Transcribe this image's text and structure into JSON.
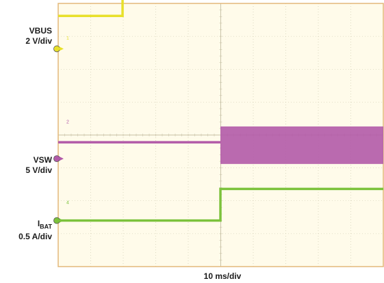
{
  "chart_data": {
    "type": "line",
    "title": "",
    "xlabel": "10 ms/div",
    "x_divisions": 10,
    "y_divisions": 8,
    "grid": true,
    "colors": {
      "background": "#fffbea",
      "grid": "#c9c3a8",
      "frame": "#e3b87a",
      "vbus": "#e8e02a",
      "vsw": "#b25aa8",
      "ibat": "#7cc23c"
    },
    "channels": [
      {
        "id": "vbus",
        "name": "VBUS",
        "scale": "2 V/div",
        "marker_div": 6.62,
        "trace_divs": [
          [
            0,
            7.62
          ],
          [
            1.98,
            7.62
          ],
          [
            1.98,
            8.56
          ],
          [
            4.99,
            8.56
          ],
          [
            4.99,
            8.45
          ],
          [
            10,
            8.45
          ]
        ]
      },
      {
        "id": "vsw",
        "name": "VSW",
        "scale": "5 V/div",
        "marker_div": 3.28,
        "trace_divs": [
          [
            0,
            3.78
          ],
          [
            4.99,
            3.78
          ]
        ],
        "switching_band_divs": {
          "x": [
            4.99,
            10
          ],
          "y": [
            3.12,
            4.26
          ]
        }
      },
      {
        "id": "ibat",
        "name": "IBAT",
        "scale": "0.5 A/div",
        "marker_div": 1.4,
        "trace_divs": [
          [
            0,
            1.4
          ],
          [
            4.99,
            1.4
          ],
          [
            4.99,
            2.36
          ],
          [
            10,
            2.36
          ]
        ]
      }
    ],
    "channel_tags": [
      "1",
      "2",
      "4"
    ]
  }
}
